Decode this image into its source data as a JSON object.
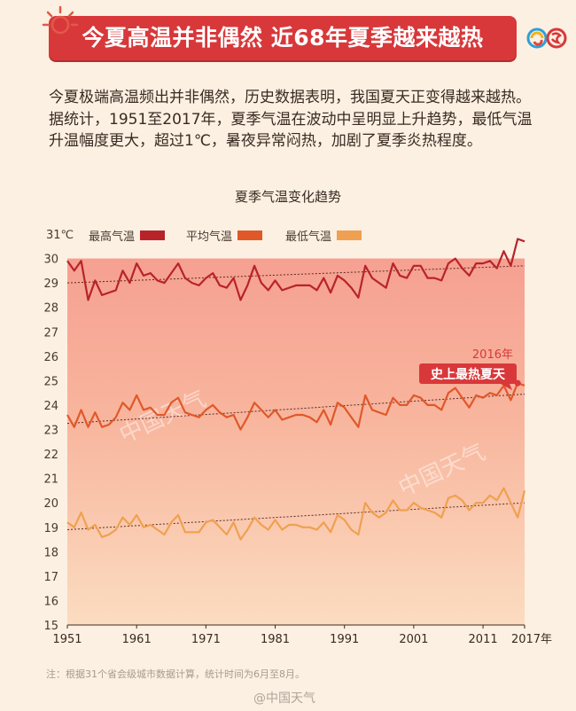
{
  "header": {
    "title": "今夏高温并非偶然  近68年夏季越来越热",
    "accent_color": "#d8383a",
    "icons": [
      "sun-icon",
      "china-weather-logo-icon"
    ]
  },
  "intro": {
    "text": "今夏极端高温频出并非偶然，历史数据表明，我国夏天正变得越来越热。据统计，1951至2017年，夏季气温在波动中呈明显上升趋势，最低气温升温幅度更大，超过1℃，暑夜异常闷热，加剧了夏季炎热程度。"
  },
  "chart_data": {
    "type": "line",
    "title": "夏季气温变化趋势",
    "y_unit": "℃",
    "x_unit": "年",
    "xlim": [
      1951,
      2017
    ],
    "ylim": [
      15,
      31
    ],
    "y_ticks": [
      15,
      16,
      17,
      18,
      19,
      20,
      21,
      22,
      23,
      24,
      25,
      26,
      27,
      28,
      29,
      30,
      31
    ],
    "x_ticks": [
      1951,
      1961,
      1971,
      1981,
      1991,
      2001,
      2011,
      2017
    ],
    "x_tick_labels": [
      "1951",
      "1961",
      "1971",
      "1981",
      "1991",
      "2001",
      "2011",
      "2017年"
    ],
    "legend_position": "top-left",
    "grid": false,
    "x_start": 1951,
    "series": [
      {
        "name": "最高气温",
        "color": "#b8232a",
        "values": [
          29.9,
          29.5,
          29.9,
          28.3,
          29.1,
          28.5,
          28.6,
          28.7,
          29.5,
          29.0,
          29.8,
          29.3,
          29.4,
          29.1,
          29.0,
          29.4,
          29.8,
          29.2,
          29.0,
          28.9,
          29.2,
          29.4,
          28.9,
          28.8,
          29.2,
          28.3,
          28.9,
          29.7,
          29.0,
          28.7,
          29.1,
          28.7,
          28.8,
          28.9,
          28.9,
          28.9,
          28.7,
          29.2,
          28.6,
          29.3,
          29.1,
          28.8,
          28.4,
          29.7,
          29.2,
          29.0,
          28.8,
          29.8,
          29.3,
          29.2,
          29.7,
          29.7,
          29.2,
          29.2,
          29.1,
          29.8,
          30.0,
          29.6,
          29.3,
          29.8,
          29.8,
          29.9,
          29.6,
          30.3,
          29.7,
          30.8,
          30.7
        ],
        "trend": [
          29.0,
          29.7
        ]
      },
      {
        "name": "平均气温",
        "color": "#e0582a",
        "values": [
          23.6,
          23.1,
          23.8,
          23.1,
          23.7,
          23.1,
          23.2,
          23.5,
          24.1,
          23.8,
          24.4,
          23.8,
          23.9,
          23.6,
          23.6,
          24.1,
          24.3,
          23.7,
          23.6,
          23.5,
          23.8,
          24.0,
          23.7,
          23.5,
          23.6,
          23.0,
          23.5,
          24.1,
          23.8,
          23.5,
          23.8,
          23.4,
          23.5,
          23.6,
          23.6,
          23.5,
          23.3,
          23.8,
          23.2,
          24.1,
          23.9,
          23.5,
          23.1,
          24.4,
          23.8,
          23.7,
          23.6,
          24.3,
          24.0,
          24.0,
          24.4,
          24.3,
          24.0,
          24.0,
          23.8,
          24.5,
          24.7,
          24.3,
          23.9,
          24.4,
          24.3,
          24.5,
          24.4,
          24.8,
          24.2,
          24.9,
          24.8
        ],
        "trend": [
          23.25,
          24.45
        ]
      },
      {
        "name": "最低气温",
        "color": "#f0a050",
        "values": [
          19.2,
          19.0,
          19.6,
          18.9,
          19.1,
          18.6,
          18.7,
          18.9,
          19.4,
          19.1,
          19.5,
          19.0,
          19.1,
          18.9,
          18.7,
          19.2,
          19.5,
          18.8,
          18.8,
          18.8,
          19.2,
          19.3,
          19.0,
          18.7,
          19.2,
          18.5,
          18.9,
          19.4,
          19.1,
          18.9,
          19.3,
          18.9,
          19.1,
          19.1,
          19.0,
          19.0,
          18.9,
          19.2,
          18.8,
          19.5,
          19.3,
          18.9,
          18.7,
          20.0,
          19.6,
          19.4,
          19.6,
          20.1,
          19.7,
          19.7,
          20.0,
          19.8,
          19.7,
          19.6,
          19.4,
          20.2,
          20.3,
          20.1,
          19.7,
          20.0,
          20.0,
          20.3,
          20.1,
          20.6,
          20.0,
          19.4,
          20.5
        ],
        "trend": [
          18.9,
          20.0
        ]
      }
    ],
    "annotation": {
      "year_label": "2016年",
      "text": "史上最热夏天",
      "year": 2016,
      "value": 24.9
    },
    "watermark": "中国天气"
  },
  "footer": {
    "note": "注：根据31个省会级城市数据计算，统计时间为6月至8月。",
    "credit": "@中国天气"
  }
}
